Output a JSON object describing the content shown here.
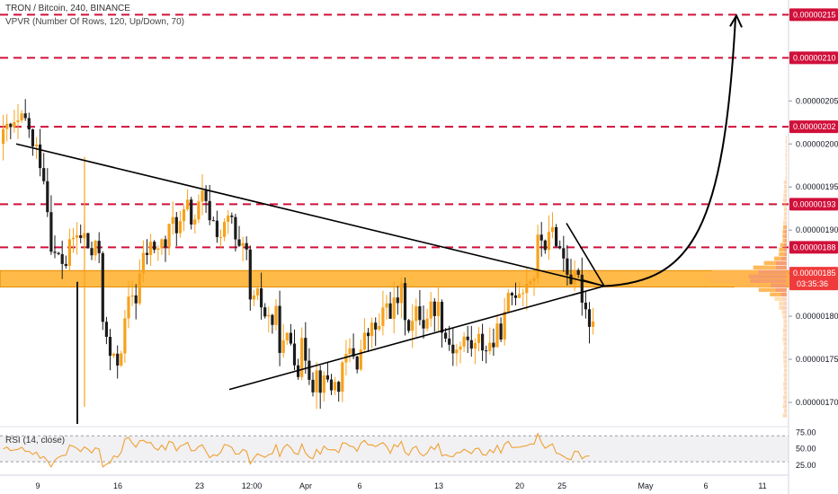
{
  "header": {
    "title": "TRON / Bitcoin, 240, BINANCE",
    "indicator": "VPVR (Number Of Rows, 120, Up/Down, 70)"
  },
  "rsi_label": "RSI (14, close)",
  "colors": {
    "up": "#f7a21c",
    "down": "#1c1c1c",
    "resistance": "#d0103a",
    "support_zone": "#ff9f00",
    "triangle": "#000000",
    "rsi_line": "#f0a030",
    "vol_up": "#ffb552",
    "vol_down": "#f59a6c"
  },
  "chart_data": [
    {
      "type": "candlestick",
      "title": "TRON / Bitcoin, 240, BINANCE",
      "y_axis": {
        "range": [
          1.675e-06,
          2.165e-06
        ],
        "ticks": [
          "0.00000170",
          "0.00000175",
          "0.00000180",
          "0.00000185",
          "0.00000190",
          "0.00000195",
          "0.00000200",
          "0.00000205",
          "0.00000210",
          "0.00000215"
        ],
        "tick_values": [
          1.7e-06,
          1.75e-06,
          1.8e-06,
          1.85e-06,
          1.9e-06,
          1.95e-06,
          2e-06,
          2.05e-06,
          2.1e-06,
          2.15e-06
        ]
      },
      "x_axis": {
        "ticks": [
          "9",
          "16",
          "23",
          "12:00",
          "Apr",
          "6",
          "13",
          "20",
          "25",
          "May",
          "6",
          "11"
        ]
      },
      "resistance_levels": [
        {
          "value": 2.15e-06,
          "label": "0.00000215"
        },
        {
          "value": 2.1e-06,
          "label": "0.00000210"
        },
        {
          "value": 2.02e-06,
          "label": "0.00000202"
        },
        {
          "value": 1.93e-06,
          "label": "0.00000193"
        },
        {
          "value": 1.88e-06,
          "label": "0.00000188"
        }
      ],
      "support_zone": {
        "low": 1.834e-06,
        "high": 1.853e-06
      },
      "current_price": {
        "value": 1.85e-06,
        "label": "0.00000185",
        "countdown": "03:35:36"
      },
      "triangle": {
        "upper": [
          [
            "start",
            2e-06
          ],
          [
            "apex",
            1.835e-06
          ]
        ],
        "lower": [
          [
            "start",
            1.715e-06
          ],
          [
            "apex",
            1.835e-06
          ]
        ]
      },
      "candles_from": 2e-06,
      "candle_path": [
        [
          2e-06,
          8
        ],
        [
          1.97e-06,
          4
        ],
        [
          1.85e-06,
          5
        ],
        [
          1.89e-06,
          6
        ],
        [
          1.86e-06,
          4
        ],
        [
          1.71e-06,
          4
        ],
        [
          1.83e-06,
          6
        ],
        [
          1.88e-06,
          8
        ],
        [
          1.91e-06,
          6
        ],
        [
          1.93e-06,
          4
        ],
        [
          1.9e-06,
          8
        ],
        [
          1.83e-06,
          4
        ],
        [
          1.79e-06,
          8
        ],
        [
          1.76e-06,
          6
        ],
        [
          1.74e-06,
          4
        ],
        [
          1.72e-06,
          6
        ],
        [
          1.75e-06,
          6
        ],
        [
          1.78e-06,
          6
        ],
        [
          1.82e-06,
          6
        ],
        [
          1.8e-06,
          6
        ],
        [
          1.82e-06,
          4
        ],
        [
          1.77e-06,
          6
        ],
        [
          1.76e-06,
          6
        ],
        [
          1.78e-06,
          4
        ],
        [
          1.82e-06,
          4
        ],
        [
          1.87e-06,
          6
        ],
        [
          1.89e-06,
          6
        ],
        [
          1.85e-06,
          4
        ],
        [
          1.8e-06,
          6
        ],
        [
          1.84e-06,
          4
        ],
        [
          1.85e-06,
          8
        ],
        [
          1.83e-06,
          6
        ],
        [
          1.86e-06,
          10
        ],
        [
          1.84e-06,
          8
        ],
        [
          1.85e-06,
          10
        ],
        [
          1.83e-06,
          6
        ],
        [
          1.84e-06,
          6
        ],
        [
          1.89e-06,
          4
        ],
        [
          1.87e-06,
          4
        ],
        [
          1.84e-06,
          4
        ]
      ]
    },
    {
      "type": "line",
      "title": "RSI (14, close)",
      "y_axis": {
        "range": [
          15,
          80
        ],
        "ticks": [
          "75.00",
          "50.00",
          "25.00"
        ],
        "tick_values": [
          75,
          50,
          25
        ]
      },
      "bands": [
        30,
        70
      ]
    }
  ]
}
